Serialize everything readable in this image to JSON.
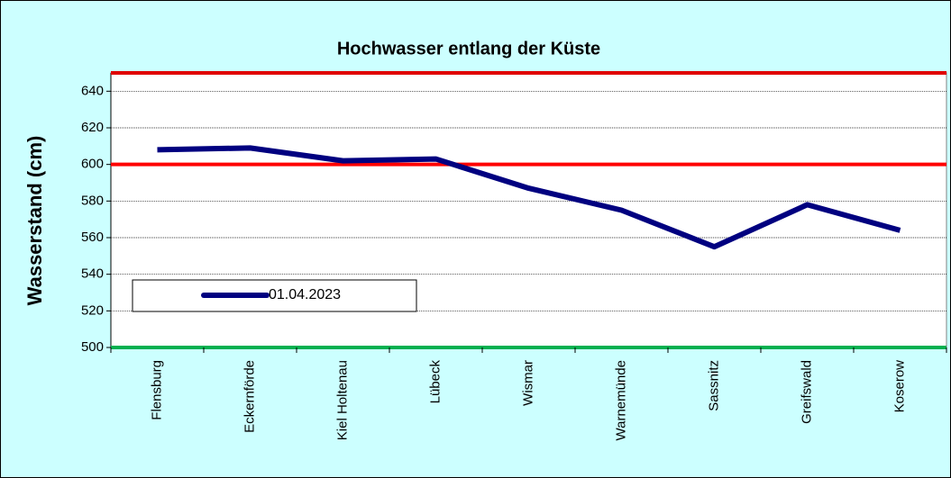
{
  "chart_data": {
    "type": "line",
    "title": "Hochwasser entlang der Küste",
    "y_label": "Wasserstand (cm)",
    "categories": [
      "Flensburg",
      "Eckernförde",
      "Kiel Holtenau",
      "Lübeck",
      "Wismar",
      "Warnemünde",
      "Sassnitz",
      "Greifswald",
      "Koserow"
    ],
    "series": [
      {
        "name": "01.04.2023",
        "color": "#000080",
        "values": [
          608,
          609,
          602,
          603,
          587,
          575,
          555,
          578,
          564
        ]
      }
    ],
    "ylim": [
      500,
      650
    ],
    "yticks": [
      500,
      520,
      540,
      560,
      580,
      600,
      620,
      640
    ],
    "grid": true,
    "reference_lines": [
      {
        "value": 650,
        "color": "#e00000"
      },
      {
        "value": 600,
        "color": "#ff0000"
      },
      {
        "value": 500,
        "color": "#00b050"
      }
    ],
    "legend": "bottom-left"
  }
}
